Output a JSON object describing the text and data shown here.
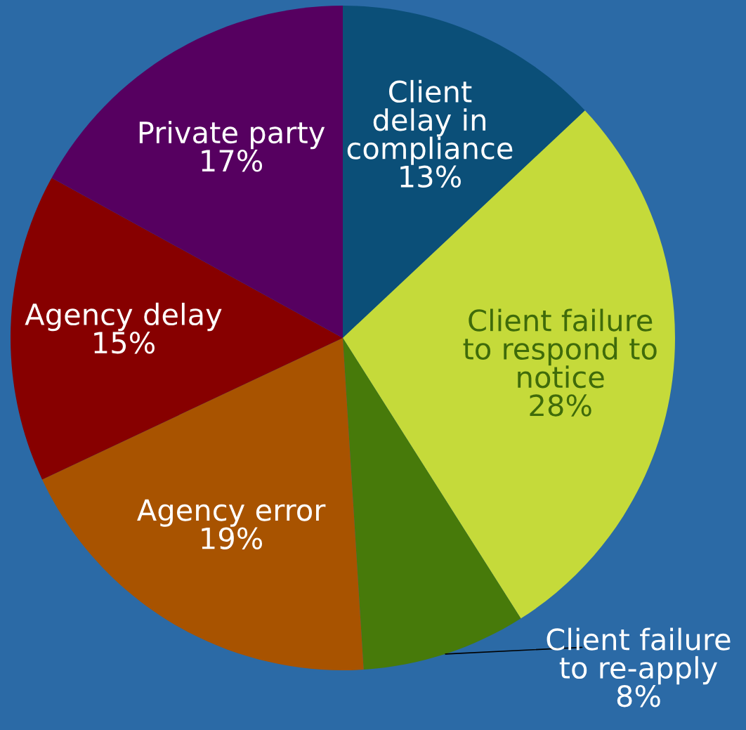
{
  "chart_data": {
    "type": "pie",
    "categories": [
      "Client\ndelay in\ncompliance",
      "Client failure\nto respond to\nnotice",
      "Client failure\nto re-apply",
      "Agency error",
      "Agency delay",
      "Private party"
    ],
    "values": [
      13,
      28,
      8,
      19,
      15,
      17
    ],
    "colors": [
      "#0b4f78",
      "#c5da3a",
      "#477a0a",
      "#a85300",
      "#870000",
      "#560060"
    ],
    "value_labels": [
      "13%",
      "28%",
      "8%",
      "19%",
      "15%",
      "17%"
    ],
    "legend": false
  }
}
